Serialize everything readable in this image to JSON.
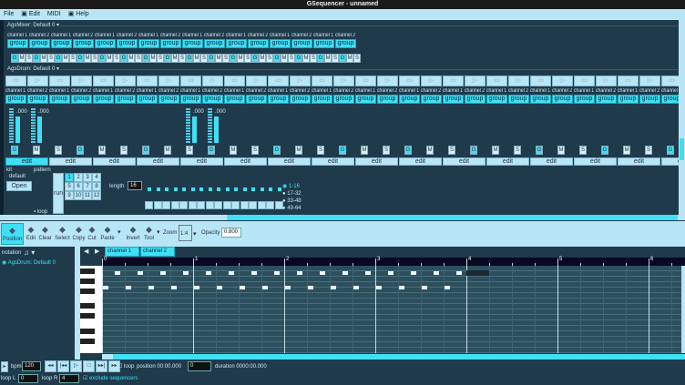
{
  "window": {
    "title": "GSequencer - unnamed"
  },
  "menu": [
    {
      "label": "File",
      "icon": ""
    },
    {
      "label": "Edit",
      "icon": "edit-icon"
    },
    {
      "label": "MIDI",
      "icon": ""
    },
    {
      "label": "Help",
      "icon": "help-icon"
    }
  ],
  "mixer": {
    "title": "AgsMixer: Default 0",
    "channel_labels": [
      "channel 1",
      "channel 2"
    ],
    "group_label": "group",
    "count": 16,
    "gms": [
      "G",
      "M",
      "S"
    ]
  },
  "drum": {
    "title": "AgsDrum: Default 0",
    "pad_count": 31,
    "channel_labels": [
      "channel 1",
      "channel 2"
    ],
    "group_label": "group",
    "count": 31,
    "gms": [
      "G",
      "M",
      "S"
    ],
    "volumes": [
      {
        "channel": 1,
        "value": ".000"
      },
      {
        "channel": 2,
        "value": ".000"
      },
      {
        "channel": 9,
        "value": ".000"
      },
      {
        "channel": 10,
        "value": ".000"
      }
    ],
    "edit_label": "edit",
    "edit_count": 16,
    "kit": {
      "label": "kit",
      "name": "default",
      "open": "Open"
    },
    "pattern": {
      "label": "pattern",
      "run": "run",
      "numbers": [
        "1",
        "2",
        "3",
        "4",
        "5",
        "6",
        "7",
        "8",
        "9",
        "10",
        "11",
        "12"
      ],
      "selected": "1",
      "loop": "loop"
    },
    "length": {
      "label": "length",
      "value": "16"
    },
    "offsets": [
      "1-16",
      "17-32",
      "33-48",
      "49-64"
    ],
    "selected_offset": "1-16"
  },
  "toolbar": {
    "items": [
      {
        "label": "Position",
        "icon": "cursor-icon",
        "active": true
      },
      {
        "label": "Edit",
        "icon": "pencil-icon"
      },
      {
        "label": "Clear",
        "icon": "eraser-icon"
      },
      {
        "label": "Select",
        "icon": "select-icon"
      },
      {
        "label": "Copy",
        "icon": "copy-icon"
      },
      {
        "label": "Cut",
        "icon": "scissors-icon"
      },
      {
        "label": "Paste",
        "icon": "paste-icon"
      },
      {
        "label": "Invert",
        "icon": "invert-icon"
      },
      {
        "label": "Tool",
        "icon": "tool-icon"
      }
    ],
    "zoom_label": "Zoom",
    "zoom_value": "1:4",
    "opacity_label": "Opacity",
    "opacity_value": "0.800"
  },
  "notation": {
    "label": "notation",
    "machine": "AgsDrum: Default 0",
    "tabs": [
      "channel 1",
      "channel 2"
    ],
    "ruler": [
      "0",
      "1",
      "2",
      "3",
      "4",
      "5",
      "6"
    ],
    "notes": [
      {
        "row": 1,
        "positions_16th": [
          0.5,
          1.5,
          2.5,
          3.5,
          4.5,
          5.5,
          6.5,
          7.5,
          8.5,
          9.5,
          10.5,
          11.5,
          12.5,
          13.5,
          14.5,
          15.5
        ]
      },
      {
        "row": 2,
        "positions_16th": [
          0,
          1,
          2,
          3,
          4,
          5,
          6,
          7,
          8,
          9,
          10,
          11,
          12,
          13,
          14,
          15
        ]
      }
    ]
  },
  "transport": {
    "bpm_label": "bpm",
    "bpm": "120",
    "loop_label": "loop",
    "position_label": "position",
    "position": "00:00.000",
    "position_field": "0",
    "duration_label": "duration",
    "duration": "0000:00.000",
    "loop_l_label": "loop L",
    "loop_l": "0",
    "loop_r_label": "loop R",
    "loop_r": "4",
    "exclude_label": "exclude sequencers",
    "exclude_checked": true
  },
  "colors": {
    "background": "#1f3a4b",
    "light": "#b9e6f6",
    "accent": "#3fe0f5"
  }
}
